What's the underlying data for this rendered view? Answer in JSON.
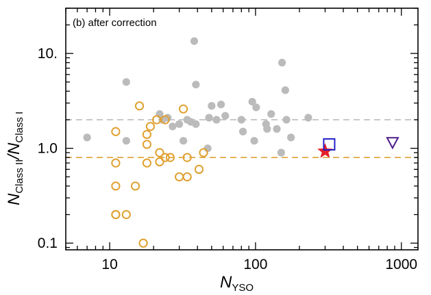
{
  "chart_data": {
    "type": "scatter",
    "title": "",
    "annotation": "(b) after correction",
    "xscale": "log",
    "yscale": "log",
    "xlim": [
      5,
      1300
    ],
    "ylim": [
      0.085,
      30
    ],
    "xlabel": {
      "main": "N",
      "sub": "YSO"
    },
    "ylabel": {
      "num": "N",
      "num_sub": "Class II",
      "slash": "/",
      "den": "N",
      "den_sub": "Class I"
    },
    "xticks": [
      {
        "value": 10,
        "label": "10"
      },
      {
        "value": 100,
        "label": "100"
      },
      {
        "value": 1000,
        "label": "1000"
      }
    ],
    "yticks": [
      {
        "value": 0.1,
        "label": "0.1"
      },
      {
        "value": 1,
        "label": "1.0"
      },
      {
        "value": 10,
        "label": "10."
      }
    ],
    "reference_lines": [
      {
        "name": "gray-median",
        "y": 2.0,
        "color": "#bbbbbb"
      },
      {
        "name": "orange-median",
        "y": 0.8,
        "color": "#e0a030"
      }
    ],
    "series": [
      {
        "name": "gray-filled",
        "marker": "filled-circle",
        "color": "#bbbbbb",
        "x": [
          7,
          13,
          13,
          22,
          23,
          25,
          27,
          30,
          32,
          34,
          36,
          38,
          39,
          39,
          47,
          48,
          50,
          54,
          58,
          62,
          80,
          82,
          95,
          98,
          101,
          118,
          120,
          128,
          140,
          150,
          152,
          160,
          163,
          175,
          230
        ],
        "y": [
          1.3,
          5.0,
          1.2,
          2.3,
          2.0,
          2.1,
          1.7,
          1.8,
          1.2,
          2.0,
          1.9,
          13.5,
          4.7,
          1.8,
          1.0,
          2.1,
          2.8,
          2.0,
          2.9,
          2.2,
          2.0,
          1.5,
          3.1,
          1.2,
          2.7,
          1.8,
          1.6,
          2.3,
          1.6,
          0.9,
          8.0,
          4.1,
          2.0,
          1.3,
          2.1
        ]
      },
      {
        "name": "orange-open",
        "marker": "open-circle",
        "color": "#e0a030",
        "x": [
          11,
          11,
          11,
          11,
          11,
          13,
          15,
          16,
          17,
          18,
          18,
          18,
          19,
          21,
          22,
          22,
          24,
          24,
          26,
          30,
          32,
          34,
          34,
          41,
          44
        ],
        "y": [
          1.5,
          0.7,
          0.4,
          0.2,
          0.2,
          0.2,
          0.4,
          2.8,
          0.1,
          1.4,
          1.1,
          0.7,
          1.7,
          2.0,
          0.72,
          0.9,
          0.8,
          2.0,
          0.8,
          0.5,
          2.6,
          0.8,
          0.5,
          0.6,
          0.9
        ]
      },
      {
        "name": "red-star",
        "marker": "star",
        "color": "#e3202a",
        "x": [
          300
        ],
        "y": [
          0.93
        ]
      },
      {
        "name": "blue-square",
        "marker": "open-square",
        "color": "#2020c8",
        "x": [
          320
        ],
        "y": [
          1.1
        ]
      },
      {
        "name": "purple-triangle",
        "marker": "open-triangle-down",
        "color": "#4b1a8a",
        "x": [
          870
        ],
        "y": [
          1.15
        ]
      }
    ]
  }
}
